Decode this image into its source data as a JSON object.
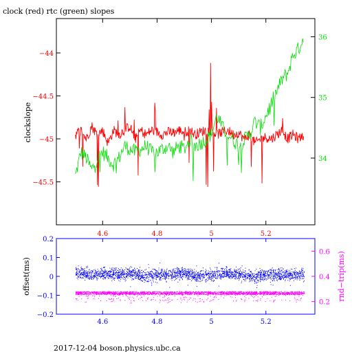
{
  "title": "clock (red) rtc (green) slopes",
  "footer": "2017-12-04 boson.physics.ubc.ca",
  "colors": {
    "red": "#ff0000",
    "green": "#00dd00",
    "blue": "#0000ff",
    "magenta": "#ff00ff",
    "black": "#000000"
  },
  "chart_data": [
    {
      "type": "line",
      "ylabel": "clockslope",
      "y2label": "",
      "xlim": [
        4.43,
        5.38
      ],
      "ylim": [
        -46.0,
        -43.6
      ],
      "y2lim": [
        32.9,
        36.3
      ],
      "xticks": [
        4.6,
        4.8,
        5,
        5.2
      ],
      "xtick_labels": [
        "4.6",
        "4.8",
        "5",
        "5.2"
      ],
      "yticks": [
        -44,
        -44.5,
        -45,
        -45.5
      ],
      "ytick_labels": [
        "−44",
        "−44.5",
        "−45",
        "−45.5"
      ],
      "y2ticks": [
        34,
        35,
        36
      ],
      "y2tick_labels": [
        "34",
        "35",
        "36"
      ],
      "series": [
        {
          "axis": "left",
          "color": "red",
          "x": [
            4.5,
            4.52,
            4.54,
            4.56,
            4.58,
            4.6,
            4.62,
            4.64,
            4.66,
            4.68,
            4.7,
            4.72,
            4.74,
            4.76,
            4.78,
            4.8,
            4.82,
            4.84,
            4.86,
            4.88,
            4.9,
            4.92,
            4.94,
            4.96,
            4.98,
            5.0,
            5.02,
            5.04,
            5.06,
            5.08,
            5.1,
            5.12,
            5.14,
            5.16,
            5.18,
            5.2,
            5.22,
            5.24,
            5.26,
            5.28,
            5.3,
            5.32,
            5.34
          ],
          "y": [
            -44.95,
            -44.9,
            -45.0,
            -44.85,
            -44.95,
            -44.9,
            -45.05,
            -44.9,
            -44.95,
            -44.9,
            -44.85,
            -45.0,
            -44.9,
            -44.95,
            -44.9,
            -44.92,
            -44.95,
            -44.92,
            -44.93,
            -44.9,
            -44.92,
            -44.9,
            -44.95,
            -44.92,
            -44.9,
            -44.9,
            -44.95,
            -44.92,
            -44.9,
            -44.95,
            -44.93,
            -45.0,
            -44.95,
            -45.05,
            -45.0,
            -44.98,
            -45.0,
            -44.95,
            -44.9,
            -45.0,
            -44.95,
            -45.0,
            -44.95
          ]
        },
        {
          "axis": "right",
          "color": "green",
          "x": [
            4.5,
            4.52,
            4.54,
            4.56,
            4.58,
            4.6,
            4.62,
            4.64,
            4.66,
            4.68,
            4.7,
            4.72,
            4.74,
            4.76,
            4.78,
            4.8,
            4.82,
            4.84,
            4.86,
            4.88,
            4.9,
            4.92,
            4.94,
            4.96,
            4.98,
            5.0,
            5.02,
            5.04,
            5.06,
            5.08,
            5.1,
            5.12,
            5.14,
            5.16,
            5.18,
            5.2,
            5.22,
            5.24,
            5.26,
            5.28,
            5.3,
            5.32,
            5.34
          ],
          "y": [
            33.7,
            34.1,
            34.0,
            33.8,
            34.0,
            34.1,
            34.0,
            33.9,
            34.0,
            34.2,
            34.15,
            34.1,
            34.15,
            34.2,
            34.1,
            34.1,
            34.15,
            34.2,
            34.1,
            34.2,
            34.15,
            34.3,
            34.2,
            34.25,
            34.3,
            34.4,
            34.7,
            34.5,
            34.4,
            34.3,
            34.2,
            34.3,
            34.4,
            34.6,
            34.5,
            34.7,
            34.9,
            35.1,
            35.3,
            35.4,
            35.7,
            35.8,
            36.0
          ]
        }
      ]
    },
    {
      "type": "scatter",
      "ylabel": "offset(ms)",
      "y2label": "rnd−trip(ms)",
      "xlim": [
        4.43,
        5.38
      ],
      "ylim": [
        -0.2,
        0.2
      ],
      "y2lim": [
        0.1,
        0.7
      ],
      "xticks": [
        4.6,
        4.8,
        5,
        5.2
      ],
      "xtick_labels": [
        "4.6",
        "4.8",
        "5",
        "5.2"
      ],
      "yticks": [
        0.2,
        0.1,
        0,
        -0.1,
        -0.2
      ],
      "ytick_labels": [
        "0.2",
        "0.1",
        "0",
        "−0.1",
        "−0.2"
      ],
      "y2ticks": [
        0.6,
        0.4,
        0.2
      ],
      "y2tick_labels": [
        "0.6",
        "0.4",
        "0.2"
      ],
      "series": [
        {
          "axis": "left",
          "color": "blue",
          "x": [
            4.5,
            4.55,
            4.6,
            4.65,
            4.7,
            4.75,
            4.8,
            4.85,
            4.9,
            4.95,
            5.0,
            5.05,
            5.1,
            5.15,
            5.2,
            5.25,
            5.3,
            5.34
          ],
          "y": [
            0.02,
            0.01,
            0.02,
            0.01,
            0.02,
            0.0,
            0.01,
            0.01,
            0.02,
            0.0,
            0.01,
            0.02,
            0.01,
            0.0,
            0.01,
            0.01,
            0.01,
            0.01
          ]
        },
        {
          "axis": "right",
          "color": "magenta",
          "x": [
            4.5,
            4.55,
            4.6,
            4.65,
            4.7,
            4.75,
            4.8,
            4.85,
            4.9,
            4.95,
            5.0,
            5.05,
            5.1,
            5.15,
            5.2,
            5.25,
            5.3,
            5.34
          ],
          "y": [
            0.27,
            0.27,
            0.27,
            0.27,
            0.27,
            0.27,
            0.27,
            0.27,
            0.27,
            0.27,
            0.27,
            0.27,
            0.27,
            0.27,
            0.27,
            0.27,
            0.27,
            0.27
          ]
        }
      ]
    }
  ]
}
